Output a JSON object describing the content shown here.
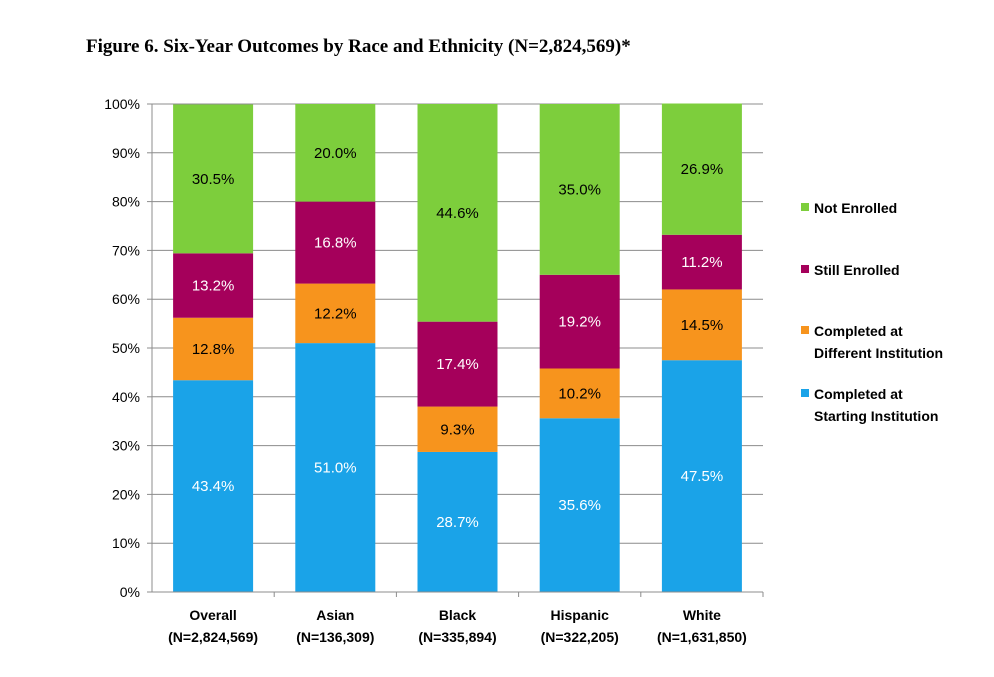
{
  "title": "Figure 6. Six-Year Outcomes by Race and Ethnicity (N=2,824,569)*",
  "chart_data": {
    "type": "bar",
    "stacked": true,
    "title": "Figure 6. Six-Year Outcomes by Race and Ethnicity (N=2,824,569)*",
    "xlabel": "",
    "ylabel": "",
    "ylim": [
      0,
      100
    ],
    "yticks": [
      "0%",
      "10%",
      "20%",
      "30%",
      "40%",
      "50%",
      "60%",
      "70%",
      "80%",
      "90%",
      "100%"
    ],
    "grid": true,
    "legend_position": "right",
    "categories": [
      {
        "line1": "Overall",
        "line2": "(N=2,824,569)"
      },
      {
        "line1": "Asian",
        "line2": "(N=136,309)"
      },
      {
        "line1": "Black",
        "line2": "(N=335,894)"
      },
      {
        "line1": "Hispanic",
        "line2": "(N=322,205)"
      },
      {
        "line1": "White",
        "line2": "(N=1,631,850)"
      }
    ],
    "series": [
      {
        "name": "Completed at Starting Institution",
        "legend_lines": [
          "Completed at",
          "Starting Institution"
        ],
        "color": "#1aa3e8",
        "label_color": "#ffffff",
        "values": [
          43.4,
          51.0,
          28.7,
          35.6,
          47.5
        ],
        "labels": [
          "43.4%",
          "51.0%",
          "28.7%",
          "35.6%",
          "47.5%"
        ]
      },
      {
        "name": "Completed at Different Institution",
        "legend_lines": [
          "Completed at",
          "Different Institution"
        ],
        "color": "#f7941d",
        "label_color": "#000000",
        "values": [
          12.8,
          12.2,
          9.3,
          10.2,
          14.5
        ],
        "labels": [
          "12.8%",
          "12.2%",
          "9.3%",
          "10.2%",
          "14.5%"
        ]
      },
      {
        "name": "Still Enrolled",
        "legend_lines": [
          "Still Enrolled"
        ],
        "color": "#a5005b",
        "label_color": "#ffffff",
        "values": [
          13.2,
          16.8,
          17.4,
          19.2,
          11.2
        ],
        "labels": [
          "13.2%",
          "16.8%",
          "17.4%",
          "19.2%",
          "11.2%"
        ]
      },
      {
        "name": "Not Enrolled",
        "legend_lines": [
          "Not Enrolled"
        ],
        "color": "#7dce3c",
        "label_color": "#000000",
        "values": [
          30.5,
          20.0,
          44.6,
          35.0,
          26.9
        ],
        "labels": [
          "30.5%",
          "20.0%",
          "44.6%",
          "35.0%",
          "26.9%"
        ]
      }
    ]
  }
}
